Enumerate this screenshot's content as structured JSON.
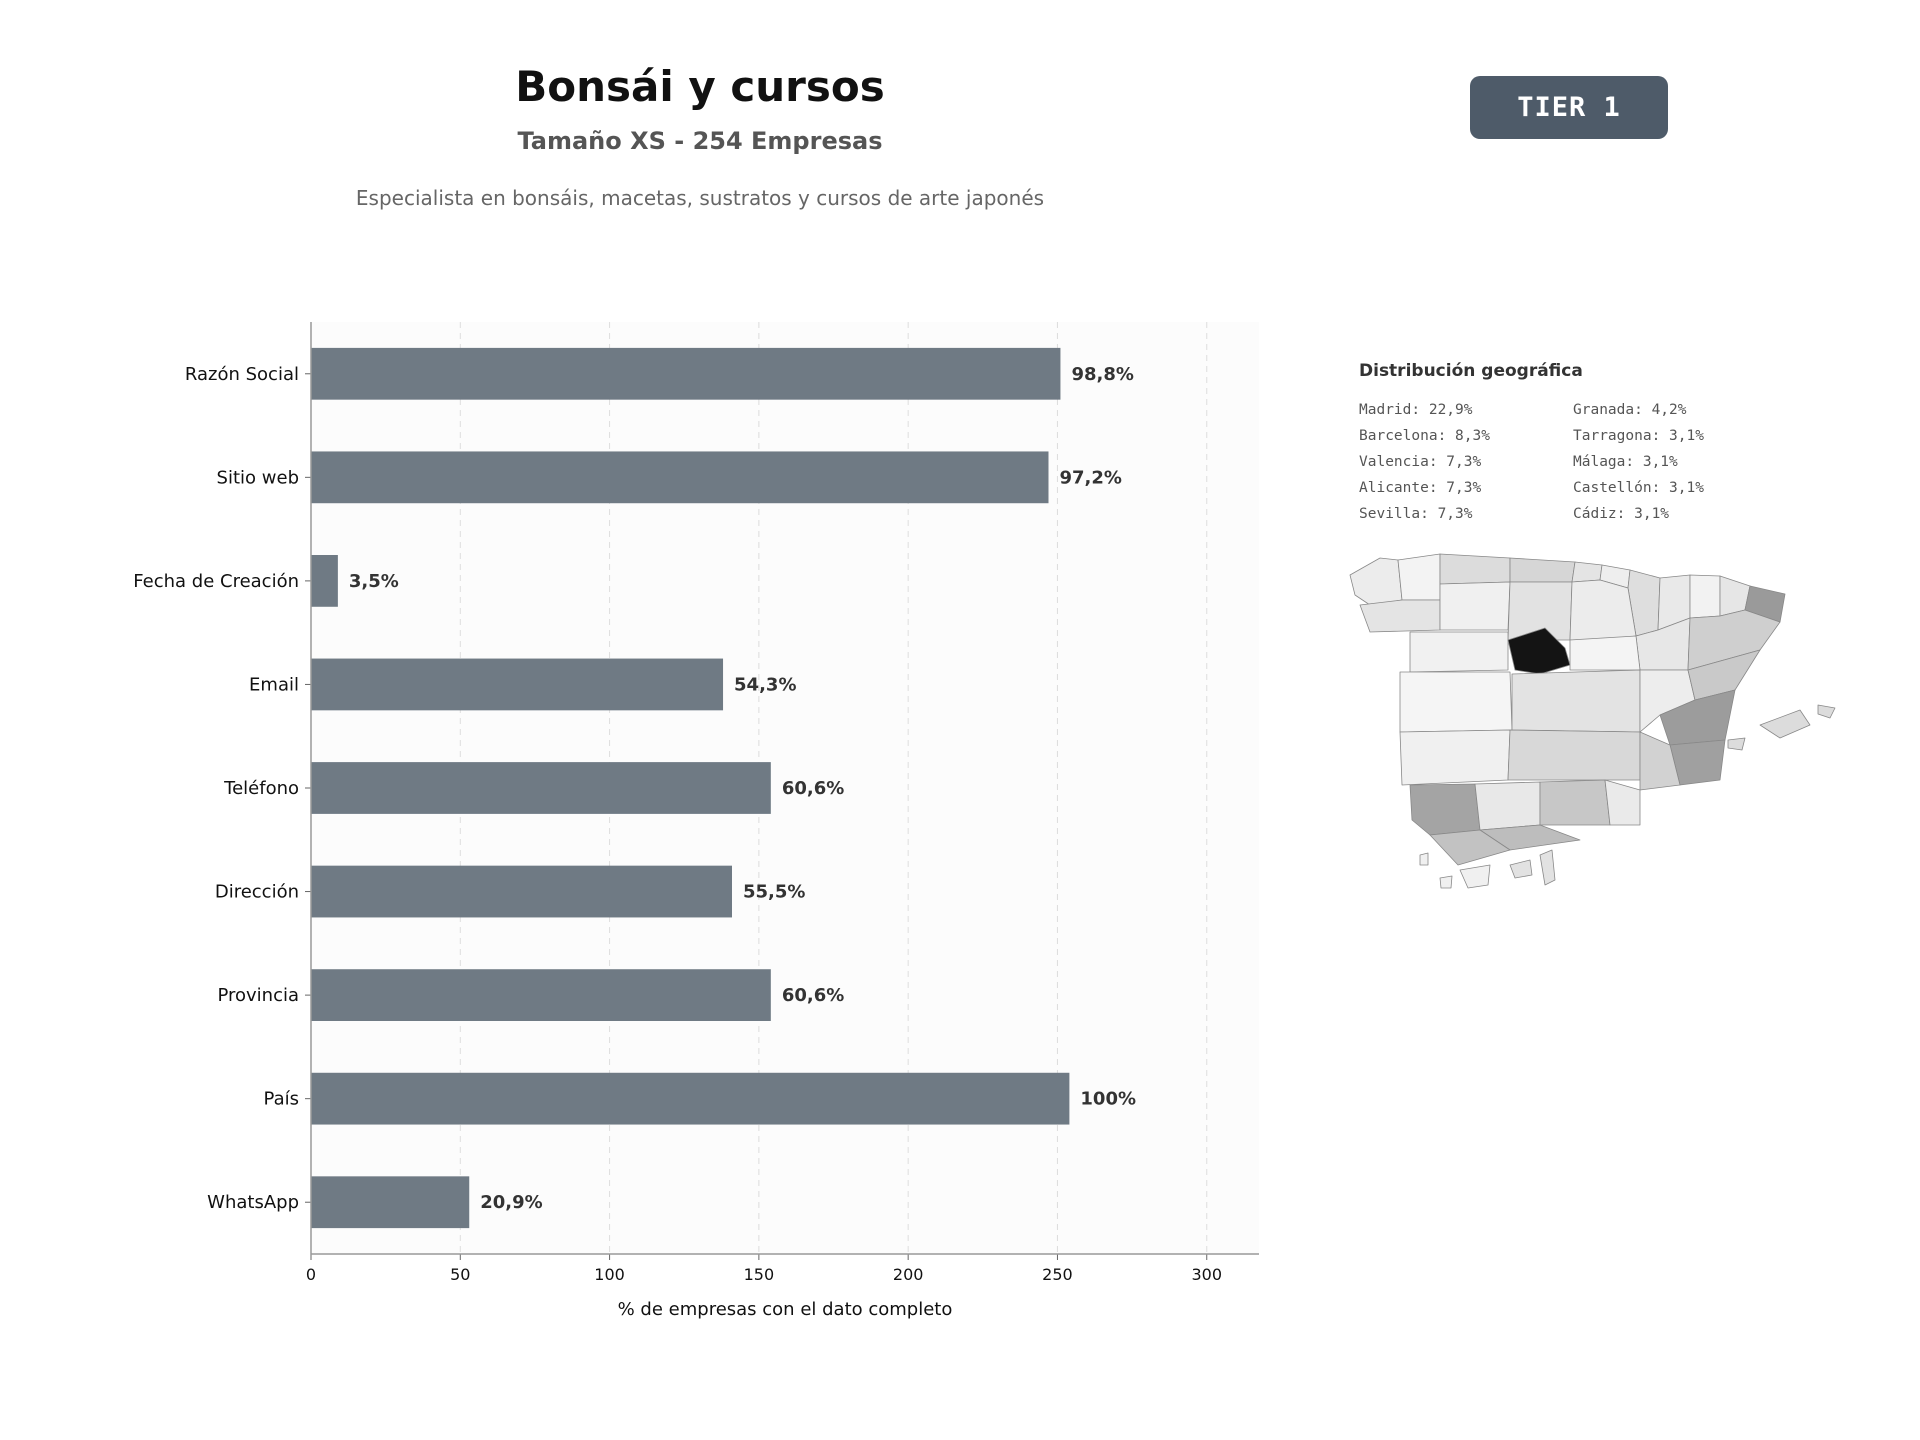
{
  "header": {
    "title": "Bonsái y cursos",
    "subtitle": "Tamaño XS - 254 Empresas",
    "description": "Especialista en bonsáis, macetas, sustratos y cursos de arte japonés",
    "tier": "TIER 1"
  },
  "chart_data": {
    "type": "bar",
    "orientation": "horizontal",
    "categories": [
      "Razón Social",
      "Sitio web",
      "Fecha de Creación",
      "Email",
      "Teléfono",
      "Dirección",
      "Provincia",
      "País",
      "WhatsApp"
    ],
    "values": [
      251,
      247,
      9,
      138,
      154,
      141,
      154,
      254,
      53
    ],
    "data_labels": [
      "98,8%",
      "97,2%",
      "3,5%",
      "54,3%",
      "60,6%",
      "55,5%",
      "60,6%",
      "100%",
      "20,9%"
    ],
    "xlabel": "% de empresas con el dato completo",
    "ylabel": "",
    "xlim": [
      0,
      317.5
    ],
    "xticks": [
      0,
      50,
      100,
      150,
      200,
      250,
      300
    ],
    "grid": "vertical-dashed",
    "bar_color": "#6f7a84"
  },
  "geo": {
    "title": "Distribución geográfica",
    "items": [
      {
        "label": "Madrid: 22,9%"
      },
      {
        "label": "Barcelona: 8,3%"
      },
      {
        "label": "Valencia: 7,3%"
      },
      {
        "label": "Alicante: 7,3%"
      },
      {
        "label": "Sevilla: 7,3%"
      },
      {
        "label": "Granada: 4,2%"
      },
      {
        "label": "Tarragona: 3,1%"
      },
      {
        "label": "Málaga: 3,1%"
      },
      {
        "label": "Castellón: 3,1%"
      },
      {
        "label": "Cádiz: 3,1%"
      }
    ]
  }
}
